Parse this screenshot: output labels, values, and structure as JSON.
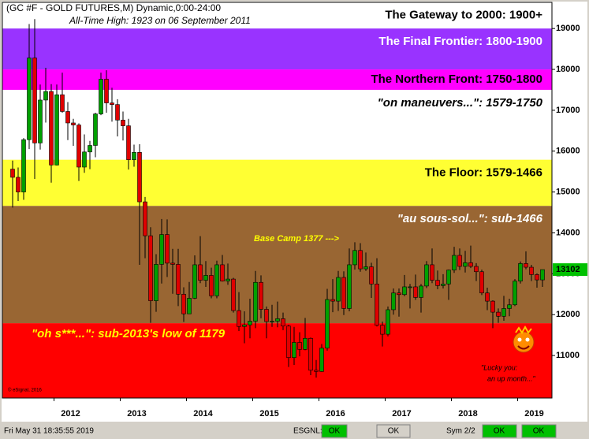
{
  "chart_data": {
    "type": "candlestick",
    "title": "(GC #F - GOLD FUTURES,M) Dynamic,0:00-24:00",
    "subtitle": "All-Time High:  1923 on 06 September 2011",
    "annotations": [
      "Base Camp 1377 --->",
      "\"Lucky you:",
      "an up month...\"",
      "© eSignal, 2016"
    ],
    "bands": [
      {
        "label": "The Gateway to 2000:  1900+",
        "low": 19000,
        "color": "#ffffff",
        "text_color": "#000000"
      },
      {
        "label": "The Final Frontier:  1800-1900",
        "low": 18000,
        "color": "#9933ff",
        "text_color": "#ffffff"
      },
      {
        "label": "The Northern Front:  1750-1800",
        "low": 17500,
        "color": "#ff00ff",
        "text_color": "#000000"
      },
      {
        "label": "\"on maneuvers...\":  1579-1750",
        "low": 15790,
        "color": "#ffffff",
        "text_color": "#000000"
      },
      {
        "label": "The Floor:  1579-1466",
        "low": 14660,
        "color": "#ffff33",
        "text_color": "#000000"
      },
      {
        "label": "\"au sous-sol...\":  sub-1466",
        "low": 11790,
        "color": "#996633",
        "text_color": "#ffffff"
      },
      {
        "label": "\"oh s***...\":  sub-2013's low of 1179",
        "color": "#ff0000",
        "text_color": "#ffff00"
      }
    ],
    "up_color": "#00a000",
    "down_color": "#e00000",
    "open": [
      15560,
      15360,
      15000,
      16280,
      18280,
      16200,
      17250,
      17460,
      15660,
      17380,
      16970,
      16690,
      16640,
      15610,
      15980,
      16140,
      16910,
      17760,
      17180,
      17140,
      16760,
      16620,
      15790,
      15970,
      14760,
      13930,
      12340,
      13230,
      13960,
      13260,
      13230,
      12500,
      12020,
      12400,
      13220,
      12840,
      12960,
      12460,
      13220,
      12820,
      12870,
      12100,
      11710,
      11750,
      11840,
      12790,
      12130,
      11830,
      11840,
      11900,
      11720,
      10950,
      11320,
      11150,
      11420,
      10640,
      10610,
      11180,
      12370,
      12330,
      12910,
      12150,
      13220,
      13570,
      13120,
      13170,
      12750,
      11740,
      11520,
      12120,
      12530,
      12490,
      12680,
      12680,
      12420,
      12700,
      13220,
      12840,
      12710,
      12750,
      13090,
      13450,
      13180,
      13270,
      13180,
      13050,
      12530,
      12330,
      12060,
      11960,
      12150,
      12240,
      12820,
      13250,
      13160,
      12980,
      12850
    ],
    "high": [
      15770,
      15600,
      16320,
      19110,
      19230,
      17630,
      18040,
      17640,
      17630,
      17920,
      17200,
      16790,
      16680,
      16410,
      16250,
      16940,
      17920,
      17980,
      17550,
      17270,
      16970,
      16790,
      16160,
      16170,
      14880,
      14140,
      13480,
      14340,
      14330,
      13610,
      13610,
      12670,
      12800,
      13450,
      13920,
      13310,
      13150,
      13320,
      13460,
      13250,
      12900,
      12550,
      12080,
      12390,
      13070,
      12960,
      12200,
      12240,
      12320,
      12050,
      11750,
      11700,
      11570,
      11920,
      11440,
      10890,
      11280,
      12630,
      12870,
      13070,
      13060,
      13620,
      13770,
      13750,
      13520,
      13270,
      13380,
      11830,
      12200,
      12640,
      12640,
      12970,
      12750,
      12980,
      12750,
      13310,
      13620,
      13080,
      12990,
      13100,
      13660,
      13620,
      13560,
      13690,
      13260,
      13100,
      12660,
      12350,
      12150,
      12460,
      12390,
      12870,
      13300,
      13550,
      13220,
      13010,
      13100
    ],
    "low": [
      14620,
      14780,
      14810,
      16050,
      15320,
      16040,
      16700,
      15230,
      15650,
      16940,
      16270,
      16130,
      15270,
      15470,
      15560,
      15850,
      16880,
      16940,
      16720,
      16360,
      16260,
      15550,
      15620,
      13220,
      13380,
      11800,
      12070,
      12760,
      12920,
      12510,
      12210,
      11820,
      12020,
      12380,
      12770,
      12680,
      12400,
      12400,
      12810,
      12730,
      12050,
      11600,
      11300,
      11420,
      11670,
      11910,
      11420,
      11700,
      11690,
      11620,
      10720,
      10770,
      10980,
      11130,
      10520,
      10460,
      10600,
      11120,
      12060,
      12090,
      11990,
      12080,
      13100,
      13050,
      13070,
      12410,
      11710,
      11220,
      11470,
      12000,
      11950,
      12450,
      12150,
      12360,
      12050,
      12650,
      12770,
      12620,
      12640,
      12360,
      13020,
      13090,
      13030,
      13140,
      12820,
      12480,
      12110,
      11670,
      11800,
      11850,
      11960,
      12210,
      12760,
      13110,
      12820,
      12660,
      12680
    ],
    "close": [
      15360,
      15000,
      16280,
      18280,
      16200,
      17250,
      17460,
      15660,
      17380,
      16970,
      16690,
      16640,
      15610,
      15980,
      16140,
      16910,
      17760,
      17180,
      17140,
      16760,
      16620,
      15790,
      15970,
      14760,
      13930,
      12340,
      13230,
      13960,
      13260,
      13230,
      12500,
      12020,
      12400,
      13220,
      12840,
      12960,
      12460,
      13220,
      12820,
      12870,
      12100,
      11710,
      11750,
      11840,
      12790,
      12130,
      11830,
      11840,
      11900,
      11720,
      10950,
      11320,
      11150,
      11420,
      10640,
      10610,
      11180,
      12370,
      12330,
      12910,
      12150,
      13220,
      13570,
      13120,
      13170,
      12750,
      11740,
      11520,
      12120,
      12530,
      12490,
      12680,
      12680,
      12420,
      12700,
      13220,
      12840,
      12710,
      12750,
      13090,
      13450,
      13180,
      13270,
      13180,
      13050,
      12530,
      12330,
      12060,
      11960,
      12150,
      12240,
      12820,
      13250,
      13160,
      12980,
      12850,
      13102
    ],
    "last_color": "#00c000",
    "ylim": [
      9960,
      19640
    ],
    "yticks": [
      11000,
      12000,
      13000,
      14000,
      15000,
      16000,
      17000,
      18000,
      19000
    ],
    "xticks": [
      {
        "value": 8,
        "label": "2012"
      },
      {
        "value": 20,
        "label": "2013"
      },
      {
        "value": 32,
        "label": "2014"
      },
      {
        "value": 44,
        "label": "2015"
      },
      {
        "value": 56,
        "label": "2016"
      },
      {
        "value": 68,
        "label": "2017"
      },
      {
        "value": 80,
        "label": "2018"
      },
      {
        "value": 92,
        "label": "2019"
      }
    ]
  },
  "status_bar": {
    "datetime": "Fri May 31 18:35:55 2019",
    "feed": "ESGNL:",
    "feed_status": "OK",
    "status_2": "OK",
    "symbols": "Sym 2/2",
    "status_3": "OK",
    "status_4": "OK"
  }
}
